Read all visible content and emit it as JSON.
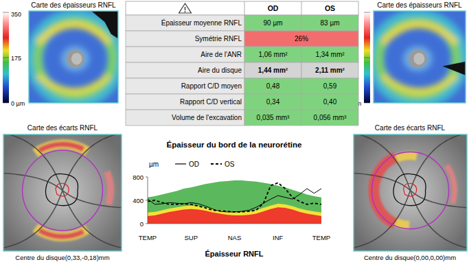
{
  "maps": {
    "thickness_title": "Carte des épaisseurs RNFL",
    "colorbar": {
      "range": [
        0,
        350
      ],
      "ticks": [
        350,
        175,
        {
          "value": 0,
          "label": "0 µm"
        }
      ]
    },
    "deviation_title": "Carte des écarts RNFL",
    "od_caption": "Centre du disque(0,33,-0,18)mm",
    "os_caption": "Centre du disque(0,00,0,00)mm"
  },
  "table": {
    "header": [
      "OD",
      "OS"
    ],
    "rows": [
      {
        "label": "Épaisseur moyenne RNFL",
        "values": [
          "90 µm",
          "83 µm"
        ],
        "color": "#7fd37f"
      },
      {
        "label": "Symétrie RNFL",
        "values": [
          "26%"
        ],
        "color": "#f26d6d"
      },
      {
        "label": "Aire de l'ANR",
        "values": [
          "1,06 mm²",
          "1,34 mm²"
        ],
        "color": "#7fd37f"
      },
      {
        "label": "Aire du disque",
        "values": [
          "1,44 mm²",
          "2,11 mm²"
        ],
        "color": "#d4d4d4"
      },
      {
        "label": "Rapport C/D moyen",
        "values": [
          "0,48",
          "0,59"
        ],
        "color": "#7fd37f"
      },
      {
        "label": "Rapport C/D vertical",
        "values": [
          "0,34",
          "0,40"
        ],
        "color": "#7fd37f"
      },
      {
        "label": "Volume de l'excavation",
        "values": [
          "0,035 mm³",
          "0,056 mm³"
        ],
        "color": "#7fd37f"
      }
    ]
  },
  "chart_data": {
    "type": "line",
    "title": "Épaisseur du bord de la neurorétine",
    "y_label": "µm",
    "x_label": "Épaisseur RNFL",
    "categories": [
      "TEMP",
      null,
      null,
      null,
      null,
      null,
      "SUP",
      null,
      null,
      null,
      null,
      null,
      "NAS",
      null,
      null,
      null,
      null,
      null,
      "INF",
      null,
      null,
      null,
      null,
      null,
      "TEMP"
    ],
    "ylim": [
      0,
      800
    ],
    "yticks": [
      0,
      400,
      800
    ],
    "grid": false,
    "legend": "top-left",
    "bands": [
      {
        "type": "area",
        "color": "#5cb85c",
        "values": [
          450,
          470,
          500,
          530,
          560,
          600,
          620,
          650,
          680,
          700,
          720,
          730,
          740,
          740,
          730,
          720,
          700,
          680,
          650,
          620,
          580,
          540,
          500,
          470,
          450
        ]
      },
      {
        "type": "area",
        "color": "#f2e23a",
        "values": [
          190,
          200,
          230,
          260,
          280,
          300,
          310,
          300,
          280,
          250,
          230,
          210,
          200,
          200,
          210,
          230,
          270,
          310,
          340,
          330,
          300,
          260,
          230,
          210,
          190
        ]
      },
      {
        "type": "area",
        "color": "#ee3b2b",
        "values": [
          130,
          140,
          170,
          200,
          220,
          240,
          250,
          240,
          220,
          190,
          170,
          150,
          140,
          140,
          150,
          170,
          210,
          250,
          280,
          270,
          240,
          200,
          170,
          150,
          130
        ]
      }
    ],
    "series": [
      {
        "name": "OD",
        "color": "#000000",
        "line_style": "solid",
        "values": [
          420,
          330,
          340,
          360,
          350,
          340,
          360,
          340,
          300,
          250,
          210,
          200,
          200,
          210,
          230,
          280,
          350,
          420,
          480,
          450,
          420,
          500,
          600,
          520,
          600
        ]
      },
      {
        "name": "OS",
        "color": "#000000",
        "line_style": "dashed",
        "values": [
          380,
          400,
          360,
          330,
          330,
          340,
          330,
          300,
          270,
          230,
          220,
          210,
          200,
          200,
          210,
          230,
          350,
          650,
          700,
          600,
          450,
          380,
          330,
          350,
          330
        ]
      }
    ]
  }
}
